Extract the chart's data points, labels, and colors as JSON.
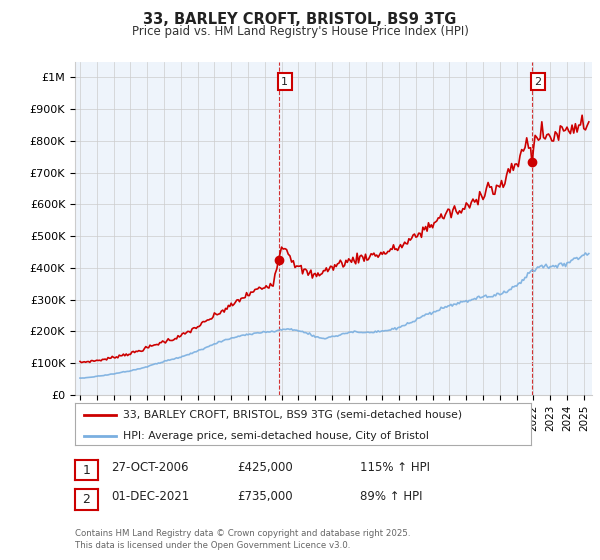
{
  "title": "33, BARLEY CROFT, BRISTOL, BS9 3TG",
  "subtitle": "Price paid vs. HM Land Registry's House Price Index (HPI)",
  "legend_label_red": "33, BARLEY CROFT, BRISTOL, BS9 3TG (semi-detached house)",
  "legend_label_blue": "HPI: Average price, semi-detached house, City of Bristol",
  "annotation1_date": "27-OCT-2006",
  "annotation1_price": "£425,000",
  "annotation1_hpi": "115% ↑ HPI",
  "annotation2_date": "01-DEC-2021",
  "annotation2_price": "£735,000",
  "annotation2_hpi": "89% ↑ HPI",
  "footnote1": "Contains HM Land Registry data © Crown copyright and database right 2025.",
  "footnote2": "This data is licensed under the Open Government Licence v3.0.",
  "ylim": [
    0,
    1050000
  ],
  "yticks": [
    0,
    100000,
    200000,
    300000,
    400000,
    500000,
    600000,
    700000,
    800000,
    900000,
    1000000
  ],
  "ytick_labels": [
    "£0",
    "£100K",
    "£200K",
    "£300K",
    "£400K",
    "£500K",
    "£600K",
    "£700K",
    "£800K",
    "£900K",
    "£1M"
  ],
  "red_color": "#cc0000",
  "blue_color": "#7aafe0",
  "shade_color": "#ddeeff",
  "background_color": "#ffffff",
  "grid_color": "#cccccc",
  "vline_color": "#cc0000",
  "marker1_x": 2006.83,
  "marker1_y": 425000,
  "marker2_x": 2021.92,
  "marker2_y": 735000,
  "vline1_x": 2006.83,
  "vline2_x": 2021.92,
  "xlim": [
    1994.7,
    2025.5
  ],
  "xticks": [
    1995,
    1996,
    1997,
    1998,
    1999,
    2000,
    2001,
    2002,
    2003,
    2004,
    2005,
    2006,
    2007,
    2008,
    2009,
    2010,
    2011,
    2012,
    2013,
    2014,
    2015,
    2016,
    2017,
    2018,
    2019,
    2020,
    2021,
    2022,
    2023,
    2024,
    2025
  ]
}
